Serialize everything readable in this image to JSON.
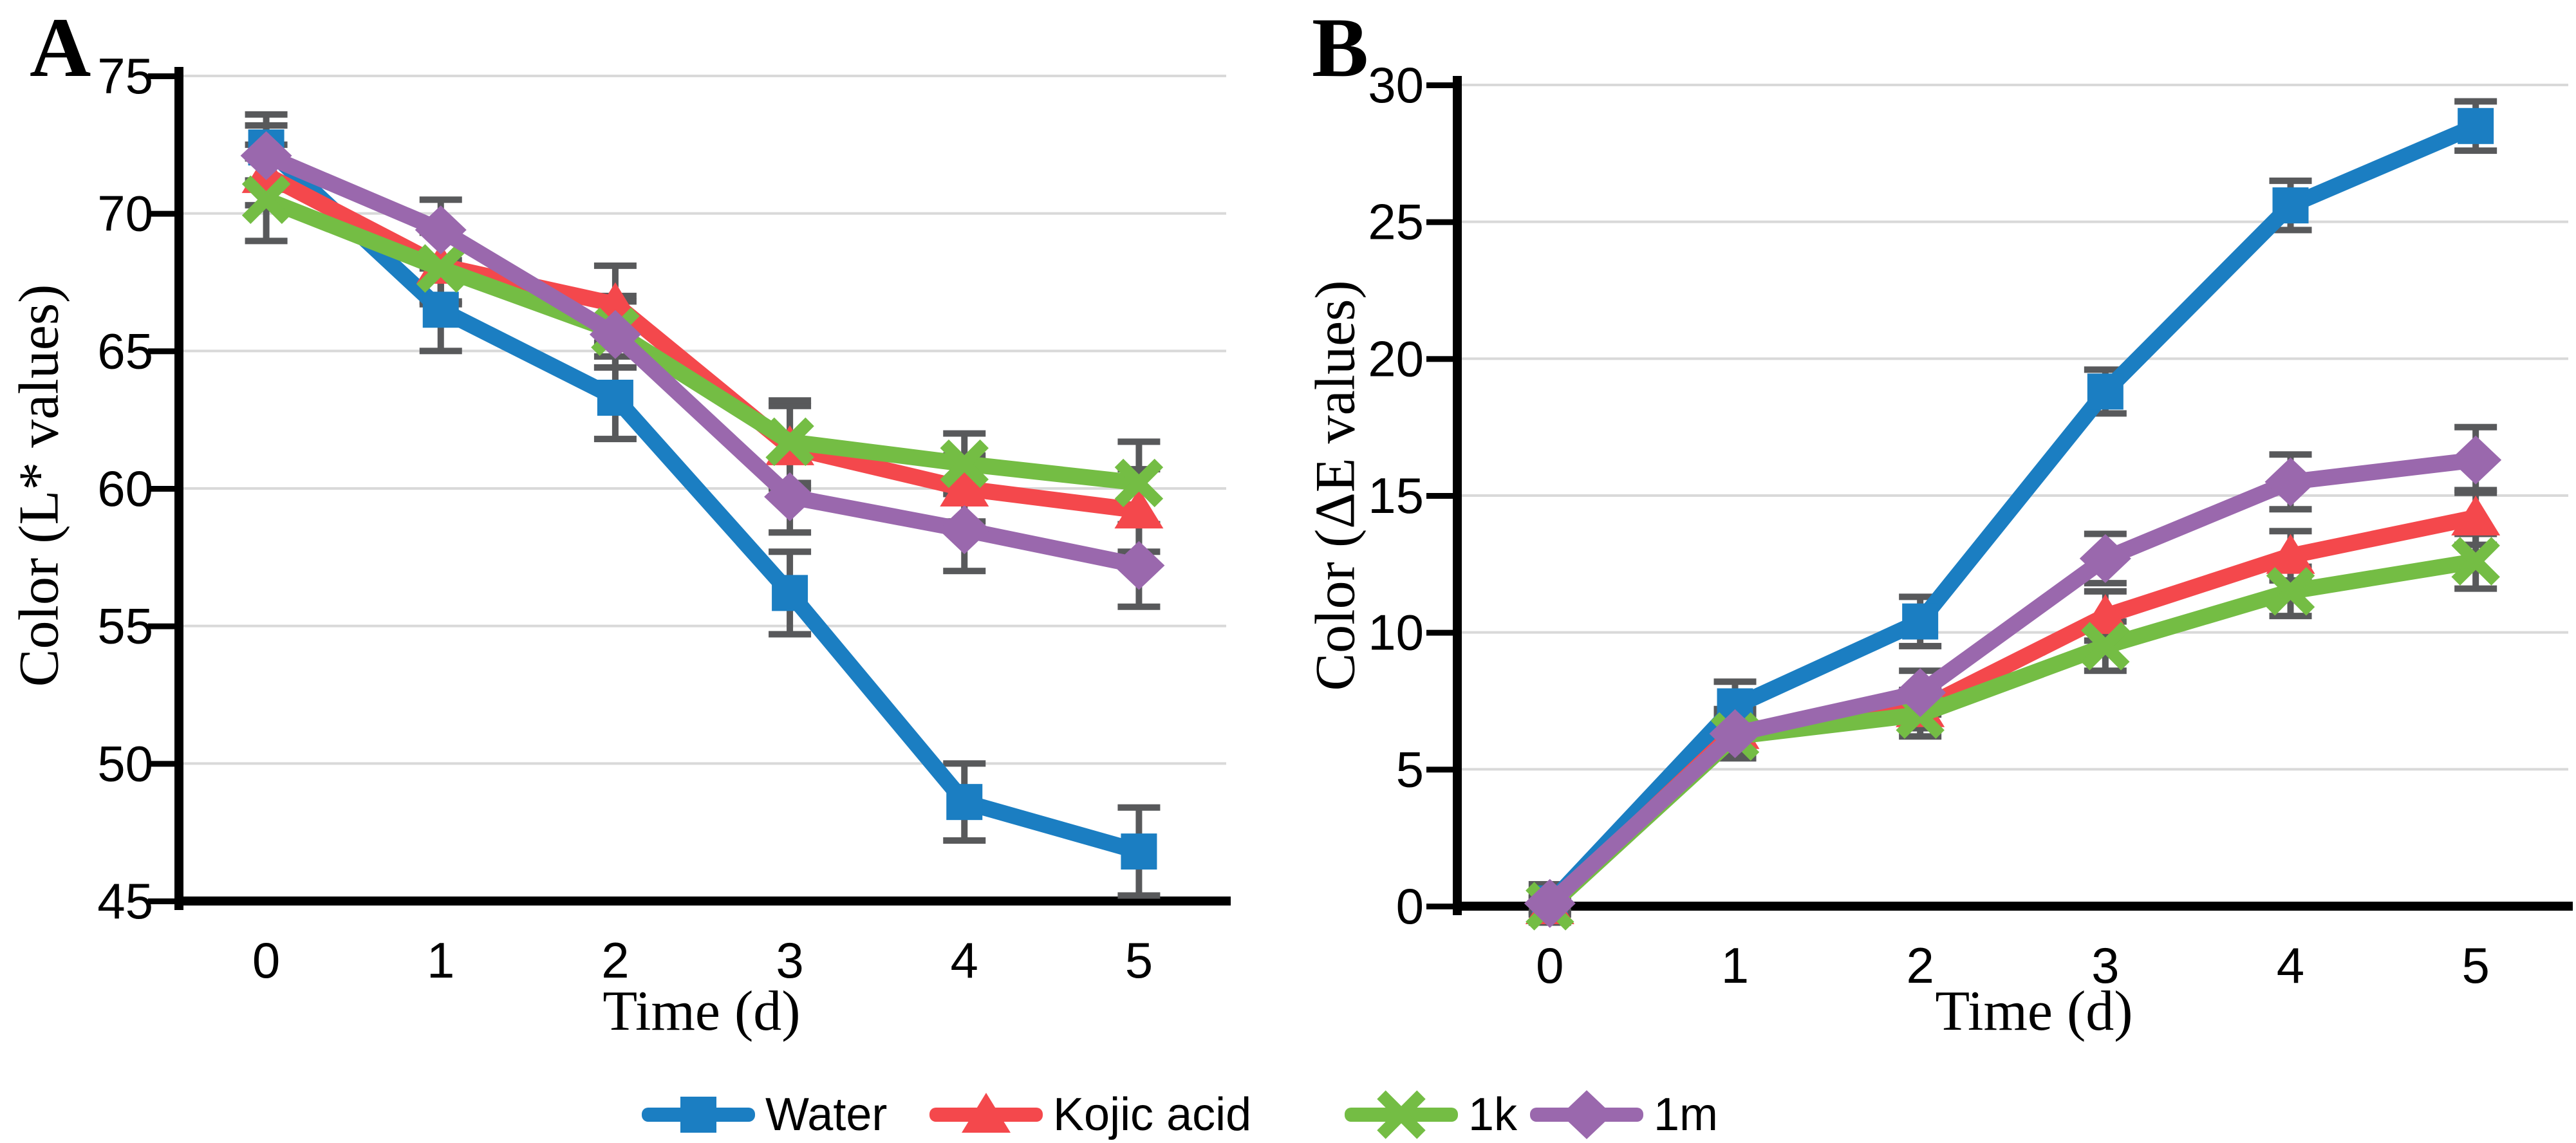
{
  "figure": {
    "background": "#ffffff",
    "panels": [
      {
        "letter": "A",
        "y_label": "Color (L* values)",
        "x_label": "Time (d)"
      },
      {
        "letter": "B",
        "y_label": "Color (ΔE values)",
        "x_label": "Time (d)"
      }
    ],
    "legend": {
      "position": "bottom-center",
      "items": [
        {
          "label": "Water",
          "marker": "square",
          "color": "#1b7ec2"
        },
        {
          "label": "Kojic acid",
          "marker": "triangle",
          "color": "#f4484c"
        },
        {
          "label": "1k",
          "marker": "x",
          "color": "#74bd44"
        },
        {
          "label": "1m",
          "marker": "diamond",
          "color": "#9a68ad"
        }
      ]
    },
    "colors": {
      "water": "#1b7ec2",
      "kojic_acid": "#f4484c",
      "one_k": "#74bd44",
      "one_m": "#9a68ad",
      "error_bar": "#58595b",
      "gridline": "#d9d9d9",
      "axis": "#000000"
    }
  },
  "chart_data": [
    {
      "type": "line",
      "title": "A",
      "xlabel": "Time (d)",
      "ylabel": "Color (L* values)",
      "x": [
        0,
        1,
        2,
        3,
        4,
        5
      ],
      "x_tick_labels": [
        "0",
        "1",
        "2",
        "3",
        "4",
        "5"
      ],
      "ylim": [
        45,
        75
      ],
      "y_ticks": [
        45,
        50,
        55,
        60,
        65,
        70,
        75
      ],
      "grid": true,
      "series": [
        {
          "name": "Water",
          "marker": "square",
          "color": "#1b7ec2",
          "values": [
            72.4,
            66.5,
            63.3,
            56.2,
            48.6,
            46.8
          ],
          "errors": [
            1.2,
            1.5,
            1.5,
            1.5,
            1.4,
            1.6
          ]
        },
        {
          "name": "Kojic acid",
          "marker": "triangle",
          "color": "#f4484c",
          "values": [
            71.4,
            68.1,
            66.7,
            61.5,
            60.0,
            59.2
          ],
          "errors": [
            1.1,
            1.3,
            1.4,
            1.5,
            1.2,
            1.5
          ]
        },
        {
          "name": "1k",
          "marker": "x",
          "color": "#74bd44",
          "values": [
            70.5,
            68.0,
            65.7,
            61.7,
            60.9,
            60.2
          ],
          "errors": [
            1.5,
            1.3,
            1.3,
            1.5,
            1.1,
            1.5
          ]
        },
        {
          "name": "1m",
          "marker": "diamond",
          "color": "#9a68ad",
          "values": [
            72.1,
            69.4,
            65.6,
            59.7,
            58.5,
            57.2
          ],
          "errors": [
            1.1,
            1.1,
            1.2,
            1.3,
            1.5,
            1.5
          ]
        }
      ]
    },
    {
      "type": "line",
      "title": "B",
      "xlabel": "Time (d)",
      "ylabel": "Color (ΔE values)",
      "x": [
        0,
        1,
        2,
        3,
        4,
        5
      ],
      "x_tick_labels": [
        "0",
        "1",
        "2",
        "3",
        "4",
        "5"
      ],
      "ylim": [
        0,
        30
      ],
      "y_ticks": [
        0,
        5,
        10,
        15,
        20,
        25,
        30
      ],
      "grid": true,
      "series": [
        {
          "name": "Water",
          "marker": "square",
          "color": "#1b7ec2",
          "values": [
            0.1,
            7.3,
            10.4,
            18.8,
            25.6,
            28.5
          ],
          "errors": [
            0.7,
            0.9,
            0.9,
            0.8,
            0.9,
            0.9
          ]
        },
        {
          "name": "Kojic acid",
          "marker": "triangle",
          "color": "#f4484c",
          "values": [
            0.0,
            6.4,
            7.2,
            10.6,
            12.8,
            14.2
          ],
          "errors": [
            0.3,
            0.8,
            0.7,
            0.9,
            0.9,
            1.0
          ]
        },
        {
          "name": "1k",
          "marker": "x",
          "color": "#74bd44",
          "values": [
            0.0,
            6.2,
            7.0,
            9.5,
            11.5,
            12.6
          ],
          "errors": [
            0.3,
            0.8,
            0.8,
            0.9,
            0.9,
            1.0
          ]
        },
        {
          "name": "1m",
          "marker": "diamond",
          "color": "#9a68ad",
          "values": [
            0.1,
            6.3,
            7.8,
            12.7,
            15.5,
            16.3
          ],
          "errors": [
            0.3,
            0.7,
            0.8,
            0.9,
            1.0,
            1.2
          ]
        }
      ]
    }
  ]
}
